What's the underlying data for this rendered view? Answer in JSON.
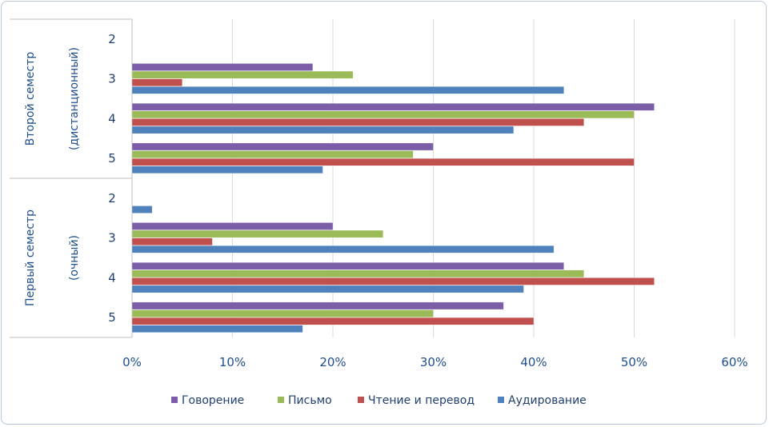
{
  "chart_data": {
    "type": "bar",
    "orientation": "horizontal",
    "xlim": [
      0,
      60
    ],
    "x_ticks": [
      "0%",
      "10%",
      "20%",
      "30%",
      "40%",
      "50%",
      "60%"
    ],
    "grid": true,
    "legend_position": "bottom",
    "groups": [
      {
        "label_line1": "Второй семестр",
        "label_line2": "(дистанционный)",
        "categories": [
          "2",
          "3",
          "4",
          "5"
        ]
      },
      {
        "label_line1": "Первый семестр",
        "label_line2": "(очный)",
        "categories": [
          "2",
          "3",
          "4",
          "5"
        ]
      }
    ],
    "series": [
      {
        "name": "Говорение",
        "color": "#7b5ea7",
        "values": [
          [
            0,
            18,
            52,
            30
          ],
          [
            0,
            20,
            43,
            37
          ]
        ]
      },
      {
        "name": "Письмо",
        "color": "#9bbb59",
        "values": [
          [
            0,
            22,
            50,
            28
          ],
          [
            0,
            25,
            45,
            30
          ]
        ]
      },
      {
        "name": "Чтение и перевод",
        "color": "#c0504d",
        "values": [
          [
            0,
            5,
            45,
            50
          ],
          [
            0,
            8,
            52,
            40
          ]
        ]
      },
      {
        "name": "Аудирование",
        "color": "#4f81bd",
        "values": [
          [
            0,
            43,
            38,
            19
          ],
          [
            2,
            42,
            39,
            17
          ]
        ]
      }
    ]
  }
}
